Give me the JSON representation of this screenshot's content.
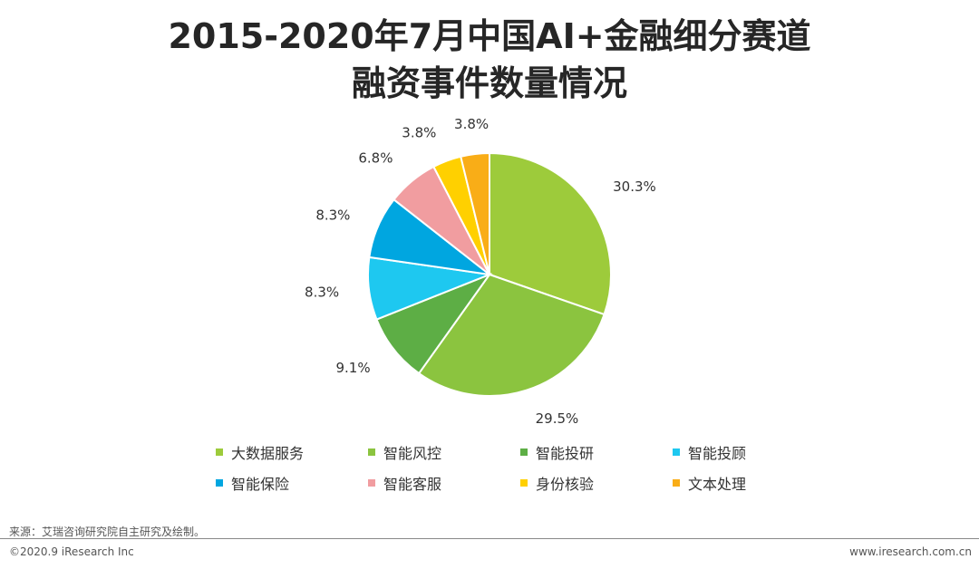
{
  "title": {
    "line1": "2015-2020年7月中国AI+金融细分赛道",
    "line2": "融资事件数量情况"
  },
  "chart_data": {
    "type": "pie",
    "categories": [
      "大数据服务",
      "智能风控",
      "智能投研",
      "智能投顾",
      "智能保险",
      "智能客服",
      "身份核验",
      "文本处理"
    ],
    "values": [
      30.3,
      29.5,
      9.1,
      8.3,
      8.3,
      6.8,
      3.8,
      3.8
    ],
    "value_labels": [
      "30.3%",
      "29.5%",
      "9.1%",
      "8.3%",
      "8.3%",
      "6.8%",
      "3.8%",
      "3.8%"
    ],
    "colors": [
      "#9DCB3B",
      "#8BC43F",
      "#5DAE45",
      "#1EC8F0",
      "#00A6E0",
      "#F19DA0",
      "#FFD000",
      "#F9AD17"
    ],
    "start_angle": "12 o'clock",
    "direction": "clockwise",
    "legend_position": "bottom"
  },
  "legend": {
    "items": [
      "大数据服务",
      "智能风控",
      "智能投研",
      "智能投顾",
      "智能保险",
      "智能客服",
      "身份核验",
      "文本处理"
    ]
  },
  "footer": {
    "source": "来源：艾瑞咨询研究院自主研究及绘制。",
    "copyright": "©2020.9 iResearch Inc",
    "website": "www.iresearch.com.cn"
  }
}
